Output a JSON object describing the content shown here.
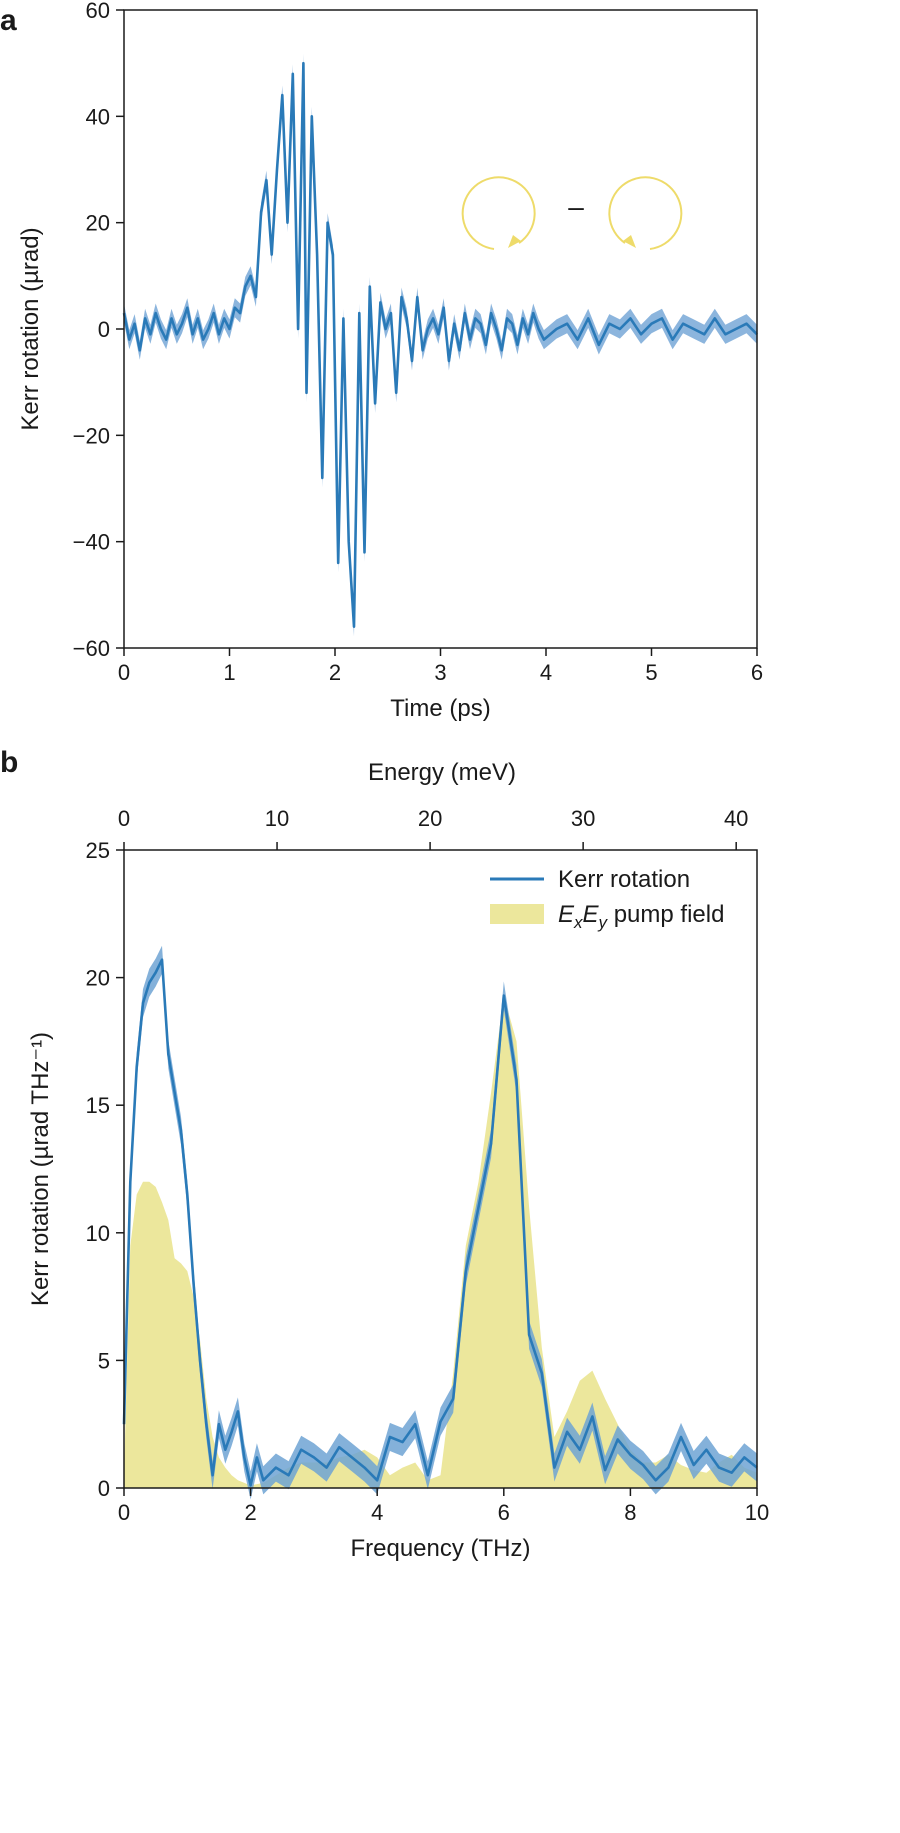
{
  "colors": {
    "kerr_line": "#2a7ab8",
    "kerr_band": "#6fa3d4",
    "pump_fill": "#ece79c",
    "polarization_arrow": "#eedb6a",
    "axis": "#1a1a1a"
  },
  "chart_data": [
    {
      "panel": "a",
      "type": "line",
      "xlabel": "Time (ps)",
      "ylabel": "Kerr rotation (µrad)",
      "xlim": [
        0,
        6
      ],
      "ylim": [
        -60,
        60
      ],
      "xticks": [
        "0",
        "1",
        "2",
        "3",
        "4",
        "5",
        "6"
      ],
      "yticks": [
        "−60",
        "−40",
        "−20",
        "0",
        "20",
        "40",
        "60"
      ],
      "inset": {
        "minus_sign": "–",
        "left_circle": "clockwise",
        "right_circle": "counterclockwise"
      },
      "series": [
        {
          "x": [
            0,
            0.05,
            0.1,
            0.15,
            0.2,
            0.25,
            0.3,
            0.35,
            0.4,
            0.45,
            0.5,
            0.55,
            0.6,
            0.65,
            0.7,
            0.75,
            0.8,
            0.85,
            0.9,
            0.95,
            1.0,
            1.05,
            1.1,
            1.15,
            1.2,
            1.25,
            1.3,
            1.35,
            1.4,
            1.45,
            1.5,
            1.55,
            1.6,
            1.65,
            1.7,
            1.73,
            1.78,
            1.83,
            1.88,
            1.93,
            1.98,
            2.03,
            2.08,
            2.13,
            2.18,
            2.23,
            2.28,
            2.33,
            2.38,
            2.43,
            2.48,
            2.53,
            2.58,
            2.63,
            2.68,
            2.73,
            2.78,
            2.83,
            2.88,
            2.93,
            2.98,
            3.03,
            3.08,
            3.13,
            3.18,
            3.23,
            3.28,
            3.33,
            3.38,
            3.43,
            3.48,
            3.53,
            3.58,
            3.63,
            3.68,
            3.73,
            3.78,
            3.83,
            3.88,
            3.93,
            3.98,
            4.1,
            4.2,
            4.3,
            4.4,
            4.5,
            4.6,
            4.7,
            4.8,
            4.9,
            5.0,
            5.1,
            5.2,
            5.3,
            5.4,
            5.5,
            5.6,
            5.7,
            5.8,
            5.9,
            6.0
          ],
          "y": [
            3,
            -2,
            1,
            -4,
            2,
            -1,
            3,
            0,
            -2,
            2,
            -1,
            1,
            4,
            -1,
            2,
            -2,
            0,
            3,
            -1,
            2,
            0,
            4,
            3,
            8,
            10,
            6,
            22,
            28,
            14,
            30,
            44,
            20,
            48,
            0,
            50,
            -12,
            40,
            14,
            -28,
            20,
            14,
            -44,
            2,
            -40,
            -56,
            3,
            -42,
            8,
            -14,
            5,
            0,
            3,
            -12,
            6,
            2,
            -6,
            6,
            -4,
            0,
            2,
            -1,
            4,
            -6,
            1,
            -4,
            3,
            -2,
            2,
            1,
            -3,
            3,
            0,
            -4,
            2,
            1,
            -3,
            2,
            -1,
            3,
            0,
            -2,
            0,
            1,
            -2,
            2,
            -3,
            1,
            0,
            2,
            -1,
            1,
            2,
            -2,
            1,
            0,
            -1,
            2,
            -1,
            0,
            1,
            -1
          ]
        }
      ]
    },
    {
      "panel": "b",
      "type": "area",
      "xlabel": "Frequency (THz)",
      "ylabel": "Kerr rotation (µrad THz⁻¹)",
      "x2label": "Energy (meV)",
      "xlim": [
        0,
        10
      ],
      "ylim": [
        0,
        25
      ],
      "x2lim": [
        0,
        41.36
      ],
      "xticks": [
        "0",
        "2",
        "4",
        "6",
        "8",
        "10"
      ],
      "yticks": [
        "0",
        "5",
        "10",
        "15",
        "20",
        "25"
      ],
      "x2ticks": [
        "0",
        "10",
        "20",
        "30",
        "40"
      ],
      "legend": {
        "position": "top-right",
        "kerr_label": "Kerr rotation",
        "pump_prefix_1": "E",
        "pump_sub_1": "x",
        "pump_prefix_2": "E",
        "pump_sub_2": "y",
        "pump_suffix": " pump field"
      },
      "series": [
        {
          "name": "Kerr rotation",
          "x": [
            0,
            0.1,
            0.2,
            0.3,
            0.4,
            0.5,
            0.6,
            0.7,
            0.8,
            0.9,
            1.0,
            1.1,
            1.2,
            1.3,
            1.4,
            1.5,
            1.6,
            1.7,
            1.8,
            1.9,
            2.0,
            2.1,
            2.2,
            2.4,
            2.6,
            2.8,
            3.0,
            3.2,
            3.4,
            3.6,
            3.8,
            4.0,
            4.2,
            4.4,
            4.6,
            4.8,
            5.0,
            5.2,
            5.4,
            5.6,
            5.8,
            6.0,
            6.2,
            6.4,
            6.6,
            6.8,
            7.0,
            7.2,
            7.4,
            7.6,
            7.8,
            8.0,
            8.2,
            8.4,
            8.6,
            8.8,
            9.0,
            9.2,
            9.4,
            9.6,
            9.8,
            10.0
          ],
          "y": [
            2.5,
            12,
            16.5,
            19,
            19.8,
            20.2,
            20.7,
            17,
            15.5,
            14,
            11.5,
            8,
            5,
            2.5,
            0.5,
            2.5,
            1.5,
            2.2,
            3,
            1.2,
            0.1,
            1.2,
            0.3,
            0.8,
            0.5,
            1.5,
            1.2,
            0.8,
            1.6,
            1.2,
            0.8,
            0.3,
            2.0,
            1.8,
            2.5,
            0.5,
            2.6,
            3.5,
            8.5,
            11,
            13.5,
            19.3,
            16,
            6,
            4.5,
            0.8,
            2.2,
            1.5,
            2.8,
            0.7,
            1.9,
            1.3,
            0.9,
            0.3,
            0.8,
            2,
            0.9,
            1.5,
            0.8,
            0.6,
            1.2,
            0.8
          ]
        },
        {
          "name": "ExEy pump field",
          "x": [
            0,
            0.1,
            0.2,
            0.3,
            0.4,
            0.5,
            0.6,
            0.7,
            0.8,
            0.9,
            1.0,
            1.1,
            1.2,
            1.3,
            1.4,
            1.5,
            1.6,
            1.7,
            1.8,
            1.9,
            2.0,
            2.2,
            2.4,
            2.6,
            2.8,
            3.0,
            3.2,
            3.4,
            3.6,
            3.8,
            4.0,
            4.2,
            4.4,
            4.6,
            4.8,
            5.0,
            5.2,
            5.4,
            5.6,
            5.8,
            6.0,
            6.2,
            6.4,
            6.6,
            6.8,
            7.0,
            7.2,
            7.4,
            7.6,
            7.8,
            8.0,
            8.2,
            8.4,
            8.6,
            8.8,
            9.0,
            9.2,
            9.4,
            9.6,
            9.8,
            10.0
          ],
          "y": [
            0.5,
            9.5,
            11.5,
            12,
            12,
            11.8,
            11.2,
            10.5,
            9,
            8.8,
            8.5,
            7.5,
            5.8,
            3.5,
            2.0,
            1.2,
            0.8,
            0.5,
            0.3,
            0.2,
            0.1,
            0.2,
            0.5,
            0.8,
            1.0,
            1.0,
            1.0,
            1.2,
            1.3,
            1.5,
            1.2,
            0.5,
            0.8,
            1.0,
            0.3,
            0.5,
            4.5,
            9.5,
            12,
            15.5,
            19.3,
            17.5,
            11,
            5.5,
            2.0,
            3.0,
            4.2,
            4.6,
            3.5,
            2.5,
            1.5,
            1.0,
            1.0,
            1.3,
            0.9,
            0.7,
            0.6,
            1.0,
            1.3,
            0.8,
            0.6
          ]
        }
      ]
    }
  ]
}
